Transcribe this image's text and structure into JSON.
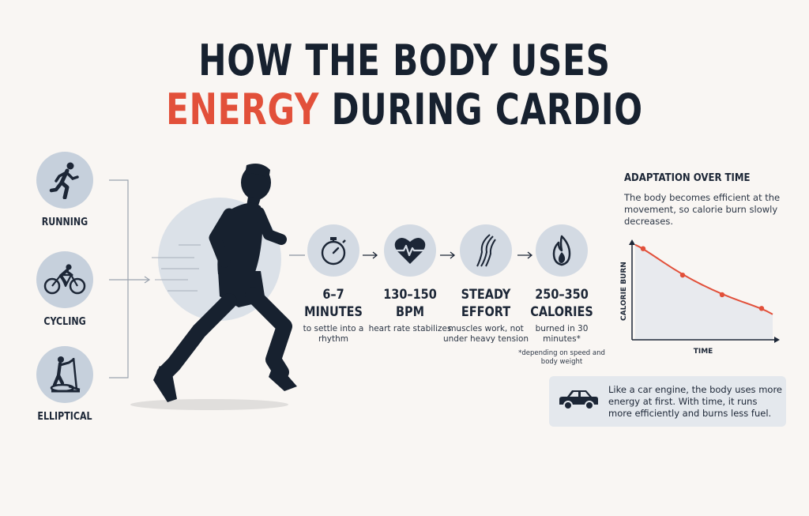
{
  "title": {
    "line1": "HOW THE BODY USES",
    "line2_accent": "ENERGY",
    "line2_rest": " DURING CARDIO"
  },
  "activities": [
    {
      "label": "RUNNING",
      "icon": "running-icon"
    },
    {
      "label": "CYCLING",
      "icon": "cycling-icon"
    },
    {
      "label": "ELLIPTICAL",
      "icon": "elliptical-icon"
    }
  ],
  "stats": [
    {
      "icon": "stopwatch-icon",
      "value": "6–7",
      "unit": "MINUTES",
      "desc": "to settle into a rhythm",
      "note": ""
    },
    {
      "icon": "heart-rate-icon",
      "value": "130–150",
      "unit": "BPM",
      "desc": "heart rate stabilizes",
      "note": ""
    },
    {
      "icon": "muscle-icon",
      "value": "STEADY",
      "unit": "EFFORT",
      "desc": "muscles work, not under heavy tension",
      "note": ""
    },
    {
      "icon": "flame-icon",
      "value": "250–350",
      "unit": "CALORIES",
      "desc": "burned in 30 minutes*",
      "note": "*depending on speed and body weight"
    }
  ],
  "adaptation": {
    "title": "ADAPTATION OVER TIME",
    "description": "The body becomes efficient at the movement, so calorie burn slowly decreases."
  },
  "chart_data": {
    "type": "line",
    "title": "ADAPTATION OVER TIME",
    "xlabel": "TIME",
    "ylabel": "CALORIE BURN",
    "series": [
      {
        "values": [
          0.93,
          0.66,
          0.46,
          0.32
        ],
        "color": "#e2503a"
      }
    ],
    "grid": false
  },
  "note": {
    "icon": "car-icon",
    "text": "Like a car engine, the body uses more energy at first. With time, it runs more efficiently and burns less fuel."
  },
  "colors": {
    "accent": "#e2503a",
    "dark": "#17212f",
    "icon_bg": "#c6d0dc"
  }
}
